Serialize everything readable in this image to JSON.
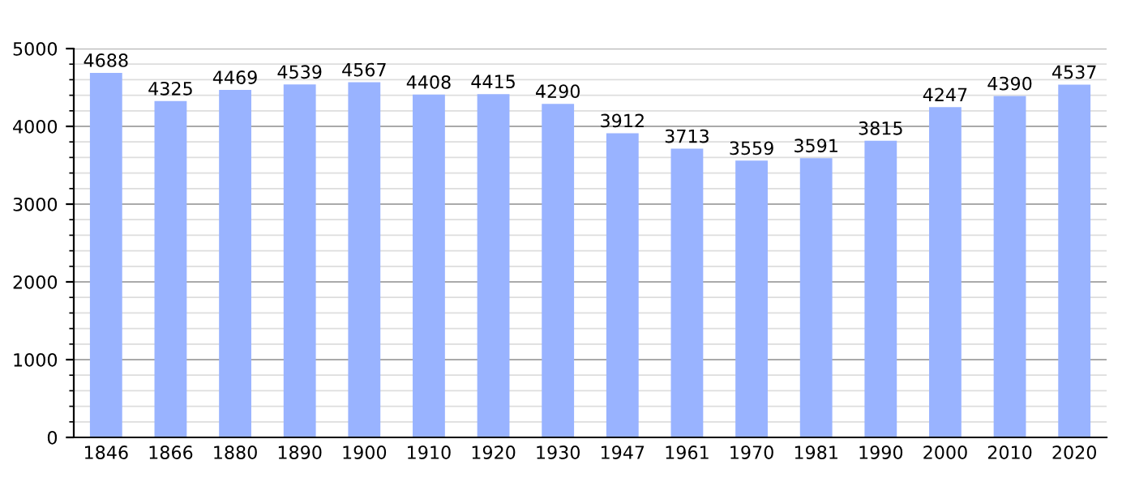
{
  "chart_data": {
    "type": "bar",
    "categories": [
      "1846",
      "1866",
      "1880",
      "1890",
      "1900",
      "1910",
      "1920",
      "1930",
      "1947",
      "1961",
      "1970",
      "1981",
      "1990",
      "2000",
      "2010",
      "2020"
    ],
    "values": [
      4688,
      4325,
      4469,
      4539,
      4567,
      4408,
      4415,
      4290,
      3912,
      3713,
      3559,
      3591,
      3815,
      4247,
      4390,
      4537
    ],
    "color": "#99b3ff",
    "ylim": [
      0,
      5000
    ],
    "yticks": [
      0,
      1000,
      2000,
      3000,
      4000,
      5000
    ],
    "grid": "y",
    "data_labels": true
  }
}
